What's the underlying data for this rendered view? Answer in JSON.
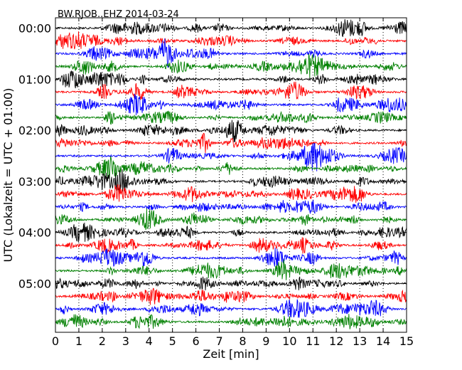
{
  "chart_data": {
    "type": "line",
    "title": "BW.RJOB..EHZ 2014-03-24",
    "xlabel": "Zeit  [min]",
    "ylabel": "UTC (Lokalzeit = UTC + 01:00)",
    "xlim": [
      0,
      15
    ],
    "x_ticks": [
      "0",
      "1",
      "2",
      "3",
      "4",
      "5",
      "6",
      "7",
      "8",
      "9",
      "10",
      "11",
      "12",
      "13",
      "14",
      "15"
    ],
    "y_ticks": [
      "00:00",
      "01:00",
      "02:00",
      "03:00",
      "04:00",
      "05:00"
    ],
    "rows_per_hour": 4,
    "row_count": 24,
    "row_colors": [
      "#000000",
      "#ff0000",
      "#0000ff",
      "#008000"
    ],
    "grid": "vertical-dotted"
  }
}
